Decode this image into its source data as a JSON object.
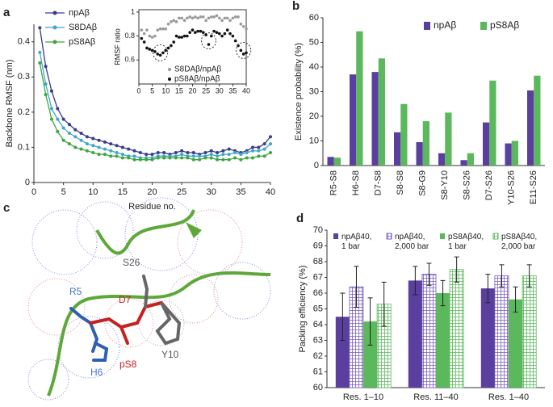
{
  "chart_data": [
    {
      "type": "line",
      "panel_label": "a",
      "x_label": "Residue no.",
      "y_label": "Backbone RMSF (nm)",
      "x": [
        1,
        2,
        3,
        4,
        5,
        6,
        7,
        8,
        9,
        10,
        11,
        12,
        13,
        14,
        15,
        16,
        17,
        18,
        19,
        20,
        21,
        22,
        23,
        24,
        25,
        26,
        27,
        28,
        29,
        30,
        31,
        32,
        33,
        34,
        35,
        36,
        37,
        38,
        39,
        40
      ],
      "xlim": [
        0,
        40
      ],
      "xticks": [
        0,
        5,
        10,
        15,
        20,
        25,
        30,
        35,
        40
      ],
      "ylim": [
        0,
        0.45
      ],
      "yticks": [
        0,
        0.1,
        0.2,
        0.3,
        0.4
      ],
      "legend": "upper-left",
      "series": [
        {
          "name": "npAβ",
          "color": "#3b3a8c",
          "values": [
            0.44,
            0.33,
            0.26,
            0.21,
            0.18,
            0.165,
            0.15,
            0.14,
            0.13,
            0.125,
            0.12,
            0.115,
            0.11,
            0.105,
            0.1,
            0.095,
            0.09,
            0.085,
            0.08,
            0.08,
            0.085,
            0.085,
            0.08,
            0.085,
            0.09,
            0.085,
            0.085,
            0.08,
            0.085,
            0.09,
            0.085,
            0.09,
            0.095,
            0.09,
            0.085,
            0.09,
            0.1,
            0.1,
            0.11,
            0.13
          ]
        },
        {
          "name": "S8DAβ",
          "color": "#3fa7c9",
          "values": [
            0.37,
            0.28,
            0.21,
            0.18,
            0.155,
            0.14,
            0.13,
            0.12,
            0.11,
            0.105,
            0.1,
            0.095,
            0.09,
            0.085,
            0.08,
            0.075,
            0.075,
            0.07,
            0.07,
            0.07,
            0.075,
            0.075,
            0.075,
            0.075,
            0.08,
            0.075,
            0.075,
            0.075,
            0.075,
            0.08,
            0.075,
            0.08,
            0.08,
            0.085,
            0.08,
            0.085,
            0.09,
            0.09,
            0.095,
            0.11
          ]
        },
        {
          "name": "pS8Aβ",
          "color": "#3da63d",
          "values": [
            0.34,
            0.25,
            0.18,
            0.145,
            0.12,
            0.11,
            0.1,
            0.095,
            0.09,
            0.085,
            0.08,
            0.08,
            0.075,
            0.075,
            0.07,
            0.07,
            0.065,
            0.065,
            0.065,
            0.065,
            0.07,
            0.07,
            0.07,
            0.07,
            0.07,
            0.07,
            0.065,
            0.065,
            0.07,
            0.07,
            0.065,
            0.065,
            0.065,
            0.07,
            0.065,
            0.07,
            0.07,
            0.075,
            0.075,
            0.085
          ]
        }
      ]
    },
    {
      "type": "scatter",
      "y_label": "RMSF ratio",
      "x": [
        1,
        2,
        3,
        4,
        5,
        6,
        7,
        8,
        9,
        10,
        11,
        12,
        13,
        14,
        15,
        16,
        17,
        18,
        19,
        20,
        21,
        22,
        23,
        24,
        25,
        26,
        27,
        28,
        29,
        30,
        31,
        32,
        33,
        34,
        35,
        36,
        37,
        38,
        39,
        40
      ],
      "xlim": [
        0,
        40
      ],
      "xticks": [
        0,
        5,
        10,
        15,
        20,
        25,
        30,
        35,
        40
      ],
      "ylim": [
        0.4,
        1.02
      ],
      "yticks": [
        0.6,
        0.8,
        1
      ],
      "legend": "lower-right",
      "series": [
        {
          "name": "S8DAβ/npAβ",
          "color": "#9a9a9a",
          "values": [
            0.85,
            0.82,
            0.85,
            0.8,
            0.79,
            0.8,
            0.85,
            0.86,
            0.86,
            0.86,
            0.9,
            0.92,
            0.93,
            0.92,
            0.95,
            0.95,
            0.93,
            0.95,
            0.96,
            0.95,
            0.96,
            0.95,
            0.96,
            0.96,
            0.93,
            0.95,
            0.96,
            0.96,
            0.97,
            0.95,
            0.93,
            0.95,
            0.95,
            0.93,
            0.95,
            0.96,
            0.96,
            0.9,
            0.88,
            0.86
          ]
        },
        {
          "name": "pS8Aβ/npAβ",
          "color": "#111111",
          "values": [
            0.78,
            0.75,
            0.7,
            0.69,
            0.68,
            0.67,
            0.65,
            0.64,
            0.66,
            0.68,
            0.7,
            0.72,
            0.75,
            0.8,
            0.79,
            0.79,
            0.8,
            0.8,
            0.83,
            0.85,
            0.83,
            0.84,
            0.84,
            0.83,
            0.81,
            0.73,
            0.8,
            0.84,
            0.83,
            0.82,
            0.8,
            0.82,
            0.85,
            0.82,
            0.8,
            0.76,
            0.72,
            0.68,
            0.65,
            0.66
          ]
        }
      ]
    },
    {
      "type": "bar",
      "panel_label": "b",
      "y_label": "Existence probability (%)",
      "categories": [
        "R5-S8",
        "H6-S8",
        "D7-S8",
        "S8-S8",
        "S8-G9",
        "S8-Y10",
        "S8-S26",
        "D7-S26",
        "Y10-S26",
        "E11-S26"
      ],
      "ylim": [
        0,
        60
      ],
      "yticks": [
        0,
        10,
        20,
        30,
        40,
        50,
        60
      ],
      "legend": "upper-right",
      "series": [
        {
          "name": "npAβ",
          "color": "#5a3f9e",
          "values": [
            3.5,
            37,
            38,
            13.5,
            9.5,
            5,
            2.2,
            17.5,
            9,
            30.5
          ]
        },
        {
          "name": "pS8Aβ",
          "color": "#5cb85c",
          "values": [
            3.2,
            54.5,
            43.5,
            25,
            18,
            21.5,
            5,
            34.5,
            10,
            36.5
          ]
        }
      ]
    },
    {
      "type": "bar",
      "panel_label": "d",
      "y_label": "Packing efficiency (%)",
      "categories": [
        "Res. 1–10",
        "Res. 11–40",
        "Res. 1–40"
      ],
      "ylim": [
        60,
        70
      ],
      "yticks": [
        60,
        61,
        62,
        63,
        64,
        65,
        66,
        67,
        68,
        69,
        70
      ],
      "legend": "top",
      "series": [
        {
          "name": "npAβ40, 1 bar",
          "color": "#5a3f9e",
          "hatch": "none",
          "values": [
            64.5,
            66.8,
            66.3
          ],
          "errors": [
            1.5,
            0.9,
            0.9
          ]
        },
        {
          "name": "npAβ40, 2,000 bar",
          "color": "#7b5fc0",
          "hatch": "grid",
          "values": [
            66.4,
            67.2,
            67.1
          ],
          "errors": [
            1.3,
            0.7,
            0.7
          ]
        },
        {
          "name": "pS8Aβ40, 1 bar",
          "color": "#5cb85c",
          "hatch": "none",
          "values": [
            64.2,
            66.0,
            65.6
          ],
          "errors": [
            1.5,
            0.8,
            0.8
          ]
        },
        {
          "name": "pS8Aβ40, 2,000 bar",
          "color": "#5cb85c",
          "hatch": "grid",
          "values": [
            65.3,
            67.5,
            67.1
          ],
          "errors": [
            1.4,
            0.8,
            0.7
          ]
        }
      ]
    }
  ],
  "panel_c": {
    "panel_label": "c",
    "labels": [
      "R5",
      "D7",
      "S26",
      "pS8",
      "H6",
      "Y10"
    ]
  }
}
